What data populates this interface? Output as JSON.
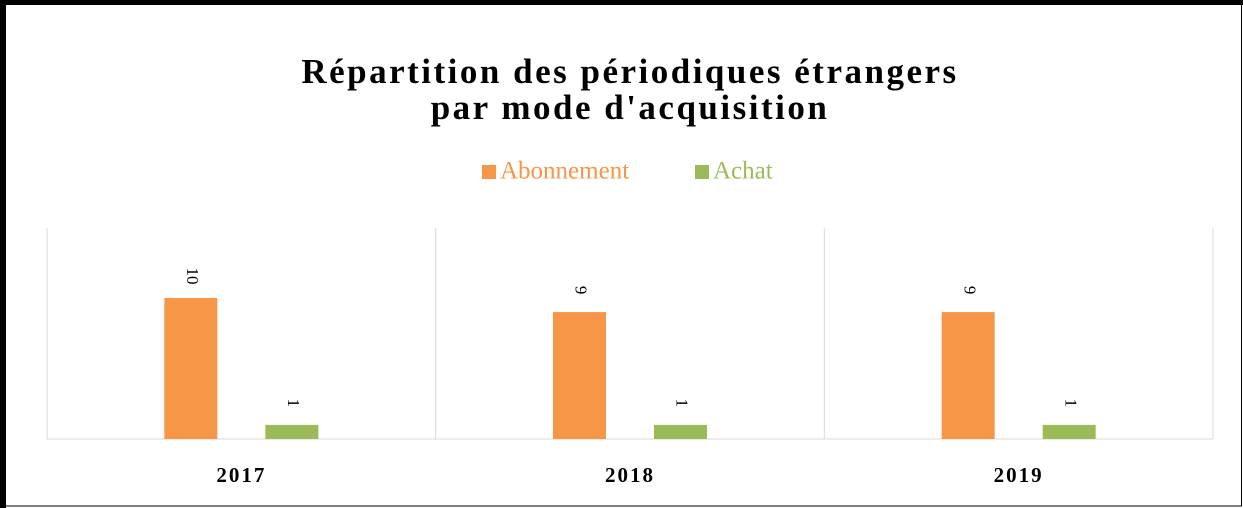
{
  "chart_data": {
    "type": "bar",
    "title": [
      "Répartition des périodiques étrangers",
      "par mode d'acquisition"
    ],
    "categories": [
      "2017",
      "2018",
      "2019"
    ],
    "series": [
      {
        "name": "Abonnement",
        "color": "#f79646",
        "values": [
          10,
          9,
          9
        ]
      },
      {
        "name": "Achat",
        "color": "#9bbb59",
        "values": [
          1,
          1,
          1
        ]
      }
    ],
    "legend": "top",
    "data_labels": true
  }
}
